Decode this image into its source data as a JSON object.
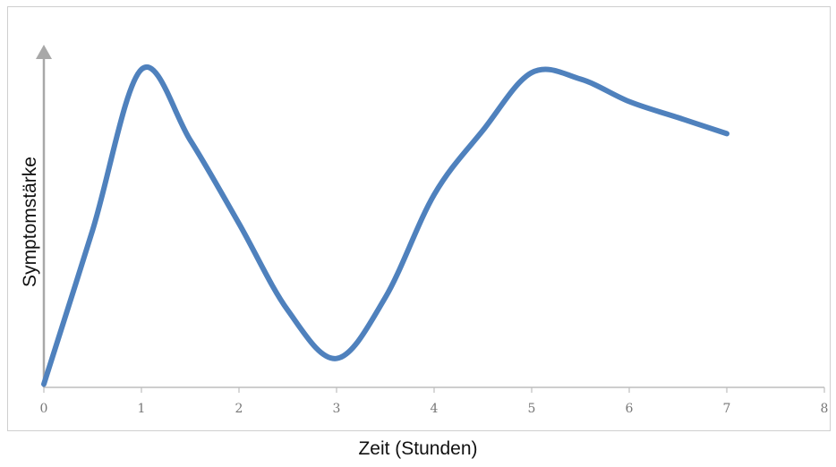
{
  "chart_data": {
    "type": "line",
    "xlabel": "Zeit (Stunden)",
    "ylabel": "Symptomstärke",
    "xlim": [
      0,
      8
    ],
    "ylim": [
      0,
      10
    ],
    "x_ticks": [
      "0",
      "1",
      "2",
      "3",
      "4",
      "5",
      "6",
      "7",
      "8"
    ],
    "grid": false,
    "legend": "none",
    "series": [
      {
        "color": "#4F81BD",
        "x": [
          0,
          0.5,
          1,
          1.5,
          2,
          2.5,
          3,
          3.5,
          4,
          4.5,
          5,
          5.5,
          6,
          6.5,
          7
        ],
        "y": [
          0.1,
          4.9,
          9.9,
          7.7,
          5.1,
          2.4,
          0.9,
          2.8,
          6.0,
          8.0,
          9.8,
          9.6,
          8.9,
          8.4,
          7.9
        ]
      }
    ]
  }
}
